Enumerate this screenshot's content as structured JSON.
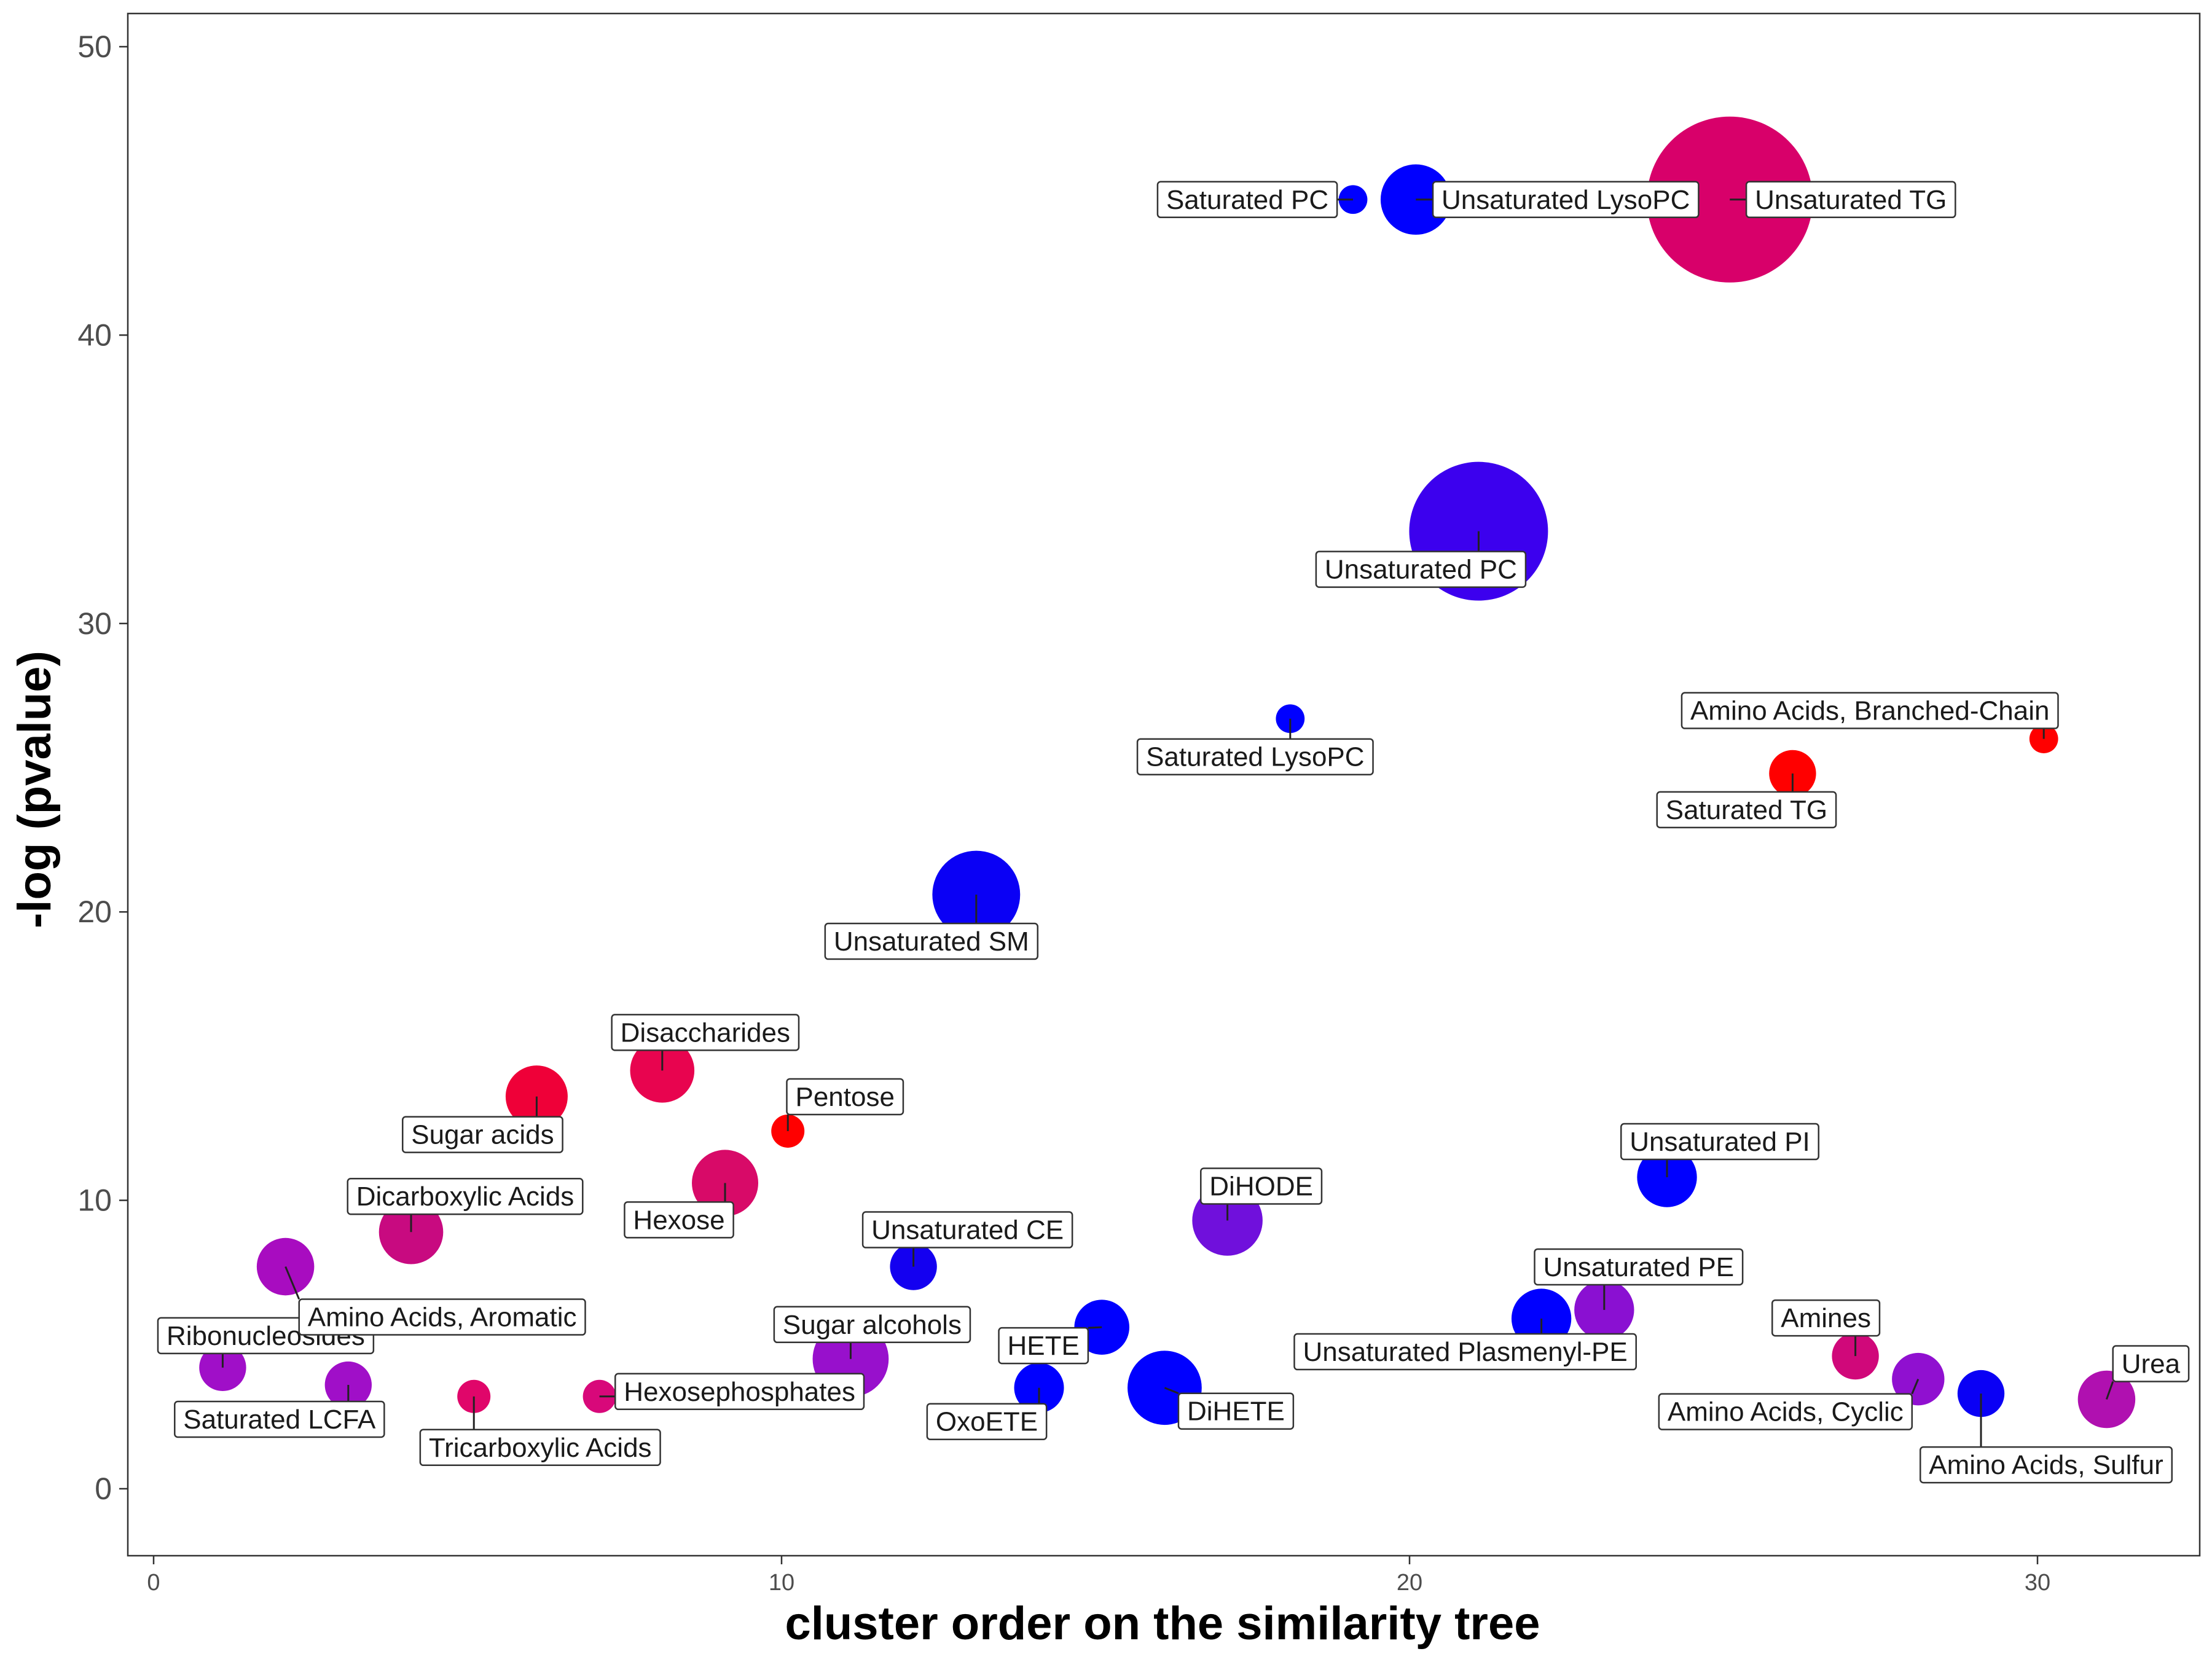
{
  "chart_data": {
    "type": "scatter",
    "xlabel": "cluster order on the similarity tree",
    "ylabel": "-log (pvalue)",
    "xlim": [
      -0.8,
      32.5
    ],
    "ylim": [
      -2.3,
      51.2
    ],
    "xticks": [
      0,
      10,
      20,
      30
    ],
    "yticks": [
      0,
      10,
      20,
      30,
      40,
      50
    ],
    "grid": false,
    "legend": "none",
    "points": [
      {
        "label": "Ribonucleosides",
        "x": 1.1,
        "y": 4.2,
        "size": 8,
        "color": "#a00fc8"
      },
      {
        "label": "Amino Acids, Aromatic",
        "x": 2.1,
        "y": 7.7,
        "size": 12,
        "color": "#a80cc0"
      },
      {
        "label": "Saturated LCFA",
        "x": 3.1,
        "y": 3.6,
        "size": 8,
        "color": "#a00fc8"
      },
      {
        "label": "Dicarboxylic Acids",
        "x": 4.1,
        "y": 8.9,
        "size": 15,
        "color": "#c80a80"
      },
      {
        "label": "Tricarboxylic Acids",
        "x": 5.1,
        "y": 3.2,
        "size": 4,
        "color": "#e0066a"
      },
      {
        "label": "Sugar acids",
        "x": 6.1,
        "y": 13.6,
        "size": 14,
        "color": "#ef0038"
      },
      {
        "label": "Hexosephosphates",
        "x": 7.1,
        "y": 3.2,
        "size": 4,
        "color": "#d8087a"
      },
      {
        "label": "Disaccharides",
        "x": 8.1,
        "y": 14.5,
        "size": 15,
        "color": "#e8044f"
      },
      {
        "label": "Hexose",
        "x": 9.1,
        "y": 10.6,
        "size": 16,
        "color": "#d80a68"
      },
      {
        "label": "Pentose",
        "x": 10.1,
        "y": 12.4,
        "size": 4,
        "color": "#ff0000"
      },
      {
        "label": "Sugar alcohols",
        "x": 11.1,
        "y": 4.5,
        "size": 21,
        "color": "#9810cc"
      },
      {
        "label": "Unsaturated CE",
        "x": 12.1,
        "y": 7.7,
        "size": 8,
        "color": "#1400f0"
      },
      {
        "label": "Unsaturated SM",
        "x": 13.1,
        "y": 20.6,
        "size": 28,
        "color": "#0a00f5"
      },
      {
        "label": "OxoETE",
        "x": 14.1,
        "y": 3.5,
        "size": 9,
        "color": "#0000ff"
      },
      {
        "label": "HETE",
        "x": 15.1,
        "y": 5.6,
        "size": 11,
        "color": "#0000ff"
      },
      {
        "label": "DiHETE",
        "x": 16.1,
        "y": 3.5,
        "size": 20,
        "color": "#0000ff"
      },
      {
        "label": "DiHODE",
        "x": 17.1,
        "y": 9.3,
        "size": 18,
        "color": "#7010dc"
      },
      {
        "label": "Saturated LysoPC",
        "x": 18.1,
        "y": 26.7,
        "size": 3,
        "color": "#0000ff"
      },
      {
        "label": "Saturated PC",
        "x": 19.1,
        "y": 44.7,
        "size": 3,
        "color": "#0000ff"
      },
      {
        "label": "Unsaturated LysoPC",
        "x": 20.1,
        "y": 44.7,
        "size": 18,
        "color": "#0000ff"
      },
      {
        "label": "Unsaturated PC",
        "x": 21.1,
        "y": 33.2,
        "size": 70,
        "color": "#3c00ee"
      },
      {
        "label": "Unsaturated Plasmenyl-PE",
        "x": 22.1,
        "y": 5.9,
        "size": 13,
        "color": "#0000ff"
      },
      {
        "label": "Unsaturated PE",
        "x": 23.1,
        "y": 6.2,
        "size": 13,
        "color": "#8a10d2"
      },
      {
        "label": "Unsaturated PI",
        "x": 24.1,
        "y": 10.8,
        "size": 13,
        "color": "#0000ff"
      },
      {
        "label": "Unsaturated TG",
        "x": 25.1,
        "y": 44.7,
        "size": 100,
        "color": "#d8006a"
      },
      {
        "label": "Saturated TG",
        "x": 26.1,
        "y": 24.8,
        "size": 8,
        "color": "#ff0000"
      },
      {
        "label": "Amines",
        "x": 27.1,
        "y": 4.6,
        "size": 8,
        "color": "#d0087a"
      },
      {
        "label": "Amino Acids, Cyclic",
        "x": 28.1,
        "y": 3.8,
        "size": 10,
        "color": "#9010d0"
      },
      {
        "label": "Amino Acids, Sulfur",
        "x": 29.1,
        "y": 3.3,
        "size": 8,
        "color": "#0a00f5"
      },
      {
        "label": "Amino Acids, Branched-Chain",
        "x": 30.1,
        "y": 26.0,
        "size": 3,
        "color": "#ff0000"
      },
      {
        "label": "Urea",
        "x": 31.1,
        "y": 3.1,
        "size": 12,
        "color": "#b010b0"
      }
    ]
  }
}
